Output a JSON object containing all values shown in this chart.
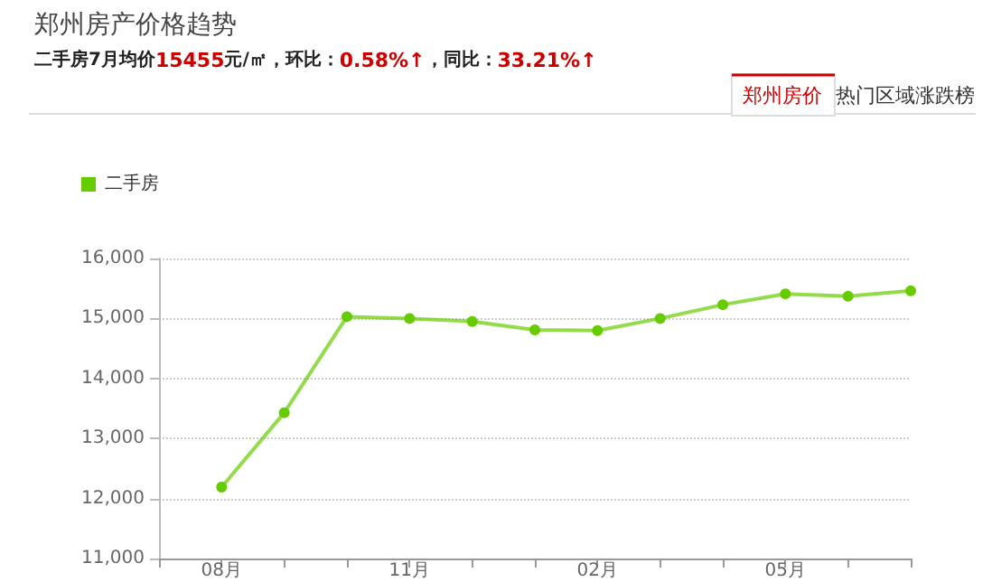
{
  "chart_data": {
    "type": "line",
    "title": "郑州房产价格趋势",
    "subtitle": "二手房7月均价15455元/㎡，环比：0.58%↑，同比：33.21%↑",
    "annotations": [
      "郑州房价",
      "热门区域涨跌榜"
    ],
    "categories": [
      null,
      "08月",
      null,
      null,
      "11月",
      null,
      null,
      "02月",
      null,
      null,
      "05月",
      null,
      null
    ],
    "series": [
      {
        "name": "二手房",
        "color": "#66cc00",
        "values": [
          null,
          12190,
          13430,
          15030,
          15000,
          14950,
          14810,
          14800,
          15000,
          15230,
          15410,
          15370,
          15460
        ]
      }
    ],
    "ylim": [
      11000,
      16000
    ],
    "yticks": [
      {
        "value": 11000,
        "label": "11,000"
      },
      {
        "value": 12000,
        "label": "12,000"
      },
      {
        "value": 13000,
        "label": "13,000"
      },
      {
        "value": 14000,
        "label": "14,000"
      },
      {
        "value": 15000,
        "label": "15,000"
      },
      {
        "value": 16000,
        "label": "16,000"
      }
    ],
    "grid": "y",
    "legend": "top left",
    "marker": "circle",
    "line_style": "solid"
  }
}
